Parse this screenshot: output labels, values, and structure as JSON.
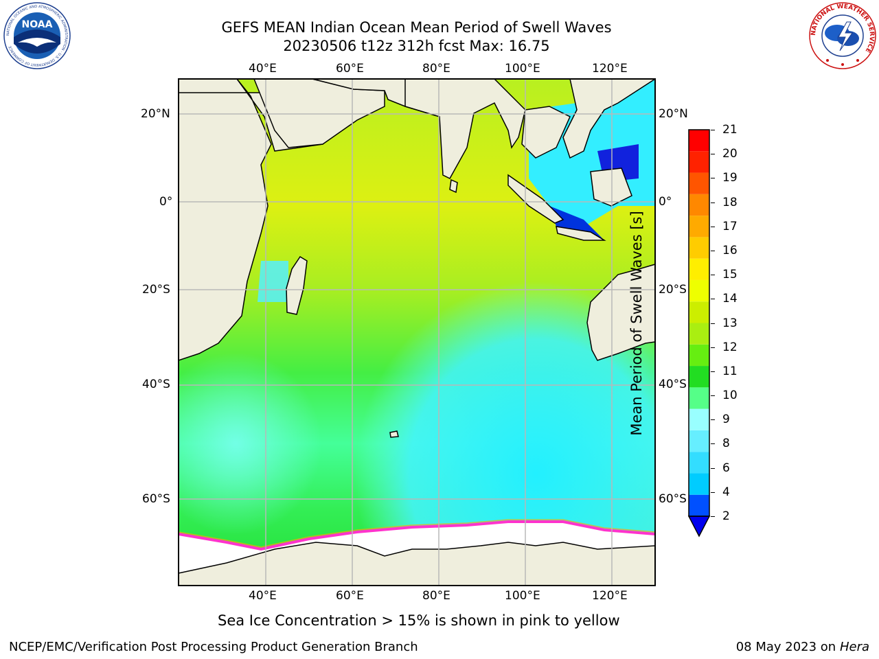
{
  "title": {
    "line1": "GEFS MEAN Indian Ocean Mean Period of Swell Waves",
    "line2": "20230506 t12z 312h fcst   Max: 16.75"
  },
  "map": {
    "lon_labels": [
      "40°E",
      "60°E",
      "80°E",
      "100°E",
      "120°E"
    ],
    "lat_labels": [
      "20°N",
      "0°",
      "20°S",
      "40°S",
      "60°S"
    ]
  },
  "colorbar": {
    "label": "Mean Period of Swell Waves [s]",
    "ticks": [
      "2",
      "4",
      "6",
      "8",
      "9",
      "10",
      "11",
      "12",
      "13",
      "14",
      "15",
      "16",
      "17",
      "18",
      "19",
      "20",
      "21"
    ],
    "colors": [
      "#0050ff",
      "#00ccff",
      "#33ddff",
      "#66eeff",
      "#99ffff",
      "#55ff88",
      "#22dd22",
      "#66ee11",
      "#aaee11",
      "#ccee00",
      "#eeff00",
      "#ffee00",
      "#ffcc00",
      "#ffaa00",
      "#ff8800",
      "#ff5500",
      "#ff2200",
      "#ff0000"
    ],
    "extend_min_color": "#0000ee"
  },
  "note": "Sea Ice Concentration > 15% is shown in pink to yellow",
  "footer": {
    "left": "NCEP/EMC/Verification Post Processing Product Generation Branch",
    "right_date": "08 May 2023 on",
    "right_machine": "Hera"
  },
  "logos": {
    "left": "NOAA",
    "left_ring": "NATIONAL OCEANIC AND ATMOSPHERIC ADMINISTRATION · U.S. DEPARTMENT OF COMMERCE",
    "right_ring": "NATIONAL WEATHER SERVICE"
  },
  "colors": {
    "land": "#efeedd",
    "ice_edge": "#ff33cc",
    "antarctica": "#ffffff",
    "grid": "#b8b8b8"
  }
}
